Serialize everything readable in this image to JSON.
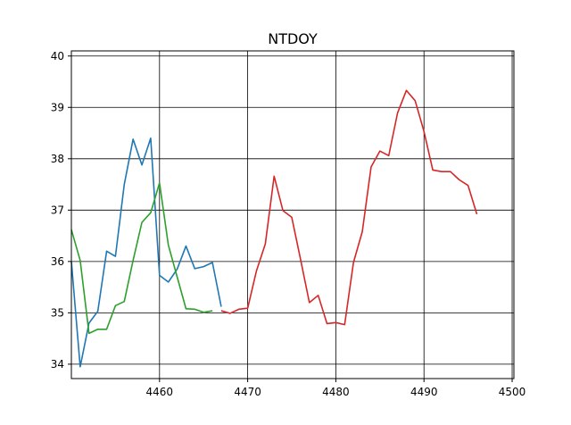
{
  "chart_data": {
    "type": "line",
    "title": "NTDOY",
    "xlabel": "",
    "ylabel": "",
    "xlim": [
      4450,
      4500.2
    ],
    "ylim": [
      33.72,
      40.1
    ],
    "xticks": [
      4460,
      4470,
      4480,
      4490,
      4500
    ],
    "yticks": [
      34,
      35,
      36,
      37,
      38,
      39,
      40
    ],
    "grid": true,
    "colors": {
      "blue": "#1f77b4",
      "green": "#2ca02c",
      "red": "#d62728"
    },
    "series": [
      {
        "color": "#1f77b4",
        "x": [
          4450,
          4451,
          4452,
          4453,
          4454,
          4455,
          4456,
          4457,
          4458,
          4459,
          4460,
          4461,
          4462,
          4463,
          4464,
          4465,
          4466,
          4467
        ],
        "y": [
          36.0,
          33.95,
          34.8,
          35.03,
          36.2,
          36.1,
          37.5,
          38.38,
          37.88,
          38.4,
          35.73,
          35.6,
          35.85,
          36.3,
          35.86,
          35.9,
          35.98,
          35.12
        ]
      },
      {
        "color": "#2ca02c",
        "x": [
          4450,
          4451,
          4452,
          4453,
          4454,
          4455,
          4456,
          4457,
          4458,
          4459,
          4460,
          4461,
          4462,
          4463,
          4464,
          4465,
          4466
        ],
        "y": [
          36.62,
          36.02,
          34.6,
          34.68,
          34.68,
          35.14,
          35.22,
          36.02,
          36.76,
          36.95,
          37.53,
          36.32,
          35.7,
          35.08,
          35.07,
          35.01,
          35.04
        ]
      },
      {
        "color": "#d62728",
        "x": [
          4467,
          4468,
          4469,
          4470,
          4471,
          4472,
          4473,
          4474,
          4475,
          4476,
          4477,
          4478,
          4479,
          4480,
          4481,
          4482,
          4483,
          4484,
          4485,
          4486,
          4487,
          4488,
          4489,
          4490,
          4491,
          4492,
          4493,
          4494,
          4495,
          4496
        ],
        "y": [
          35.04,
          34.99,
          35.07,
          35.09,
          35.82,
          36.34,
          37.66,
          36.99,
          36.86,
          36.04,
          35.2,
          35.34,
          34.79,
          34.81,
          34.77,
          35.98,
          36.58,
          37.84,
          38.15,
          38.06,
          38.89,
          39.33,
          39.13,
          38.53,
          37.78,
          37.75,
          37.75,
          37.59,
          37.48,
          36.92
        ]
      }
    ]
  }
}
